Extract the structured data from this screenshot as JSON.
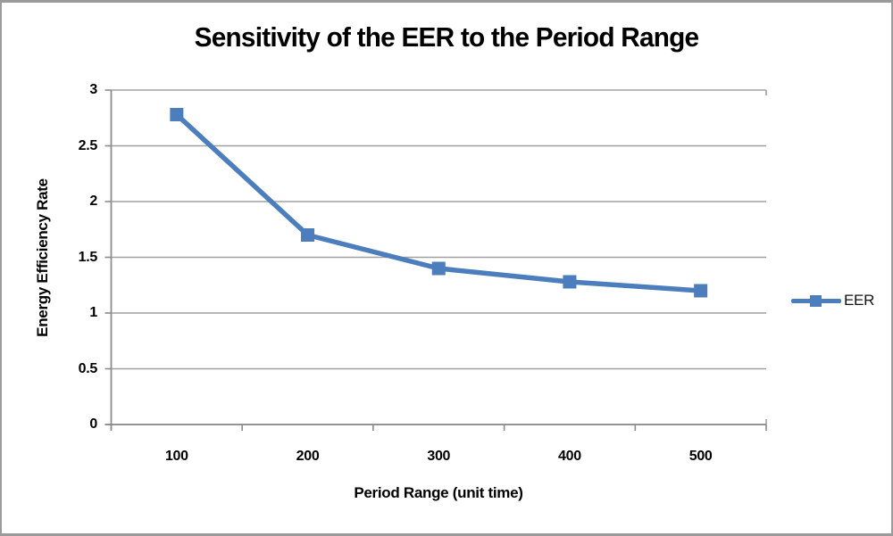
{
  "chart": {
    "title": "Sensitivity of the EER to the Period Range",
    "x_axis_title": "Period Range (unit time)",
    "y_axis_title": "Energy Efficiency Rate"
  },
  "chart_data": {
    "type": "line",
    "title": "Sensitivity of the EER to the Period Range",
    "xlabel": "Period Range (unit time)",
    "ylabel": "Energy Efficiency Rate",
    "categories": [
      "100",
      "200",
      "300",
      "400",
      "500"
    ],
    "series": [
      {
        "name": "EER",
        "values": [
          2.78,
          1.7,
          1.4,
          1.28,
          1.2
        ]
      }
    ],
    "ylim": [
      0,
      3
    ],
    "yticks": [
      0,
      0.5,
      1,
      1.5,
      2,
      2.5,
      3
    ],
    "grid": "horizontal",
    "legend_position": "right",
    "marker": "square",
    "colors": {
      "series": "#4c7ebd",
      "gridline": "#a0a0a0",
      "axis": "#8c8c8c",
      "text": "#000000",
      "frame_border": "#9a9a9a"
    }
  }
}
